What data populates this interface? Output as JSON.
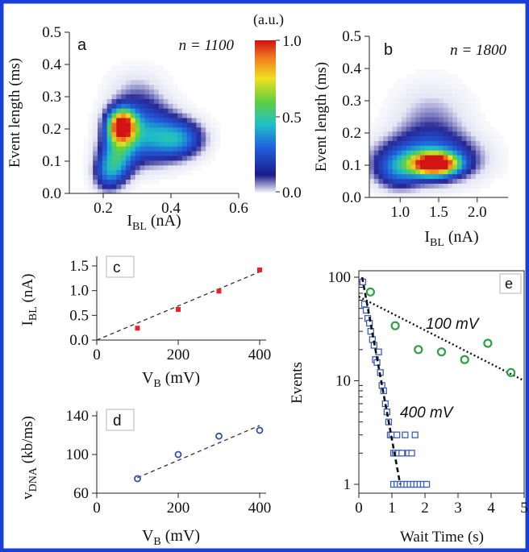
{
  "chart_data": [
    {
      "panel": "a",
      "type": "heatmap",
      "annotation": "n = 1100",
      "xlabel": "I_BL (nA)",
      "ylabel": "Event length (ms)",
      "xlim": [
        0.1,
        0.6
      ],
      "ylim": [
        0.0,
        0.5
      ],
      "xticks": [
        "0.2",
        "0.4",
        "0.6"
      ],
      "yticks": [
        "0.0",
        "0.1",
        "0.2",
        "0.3",
        "0.4",
        "0.5"
      ],
      "blobs": [
        {
          "x": 0.255,
          "y": 0.21,
          "sx": 0.028,
          "sy": 0.035,
          "a": 1.0
        },
        {
          "x": 0.33,
          "y": 0.18,
          "sx": 0.07,
          "sy": 0.06,
          "a": 0.38
        },
        {
          "x": 0.43,
          "y": 0.17,
          "sx": 0.05,
          "sy": 0.04,
          "a": 0.3
        },
        {
          "x": 0.24,
          "y": 0.11,
          "sx": 0.035,
          "sy": 0.05,
          "a": 0.38
        },
        {
          "x": 0.21,
          "y": 0.06,
          "sx": 0.03,
          "sy": 0.04,
          "a": 0.22
        },
        {
          "x": 0.3,
          "y": 0.3,
          "sx": 0.06,
          "sy": 0.06,
          "a": 0.12
        }
      ]
    },
    {
      "panel": "b",
      "type": "heatmap",
      "annotation": "n = 1800",
      "xlabel": "I_BL (nA)",
      "ylabel": "Event length (ms)",
      "xlim": [
        0.6,
        2.4
      ],
      "ylim": [
        0.0,
        0.5
      ],
      "xticks": [
        "1.0",
        "1.5",
        "2.0"
      ],
      "yticks": [
        "0.0",
        "0.1",
        "0.2",
        "0.3",
        "0.4",
        "0.5"
      ],
      "blobs": [
        {
          "x": 1.45,
          "y": 0.105,
          "sx": 0.2,
          "sy": 0.022,
          "a": 1.0
        },
        {
          "x": 1.35,
          "y": 0.12,
          "sx": 0.45,
          "sy": 0.05,
          "a": 0.35
        },
        {
          "x": 1.4,
          "y": 0.22,
          "sx": 0.35,
          "sy": 0.09,
          "a": 0.14
        },
        {
          "x": 0.95,
          "y": 0.08,
          "sx": 0.2,
          "sy": 0.04,
          "a": 0.2
        }
      ]
    },
    {
      "panel": "c",
      "type": "scatter",
      "xlabel": "V_B (mV)",
      "ylabel": "I_BL (nA)",
      "xlim": [
        0,
        400
      ],
      "ylim": [
        0.0,
        1.5
      ],
      "xticks": [
        "0",
        "200",
        "400"
      ],
      "yticks": [
        "0.0",
        "0.5",
        "1.0",
        "1.5"
      ],
      "x": [
        100,
        200,
        300,
        400
      ],
      "y": [
        0.24,
        0.62,
        0.99,
        1.42
      ],
      "fit": {
        "x": [
          0,
          400
        ],
        "y": [
          0.0,
          1.38
        ]
      }
    },
    {
      "panel": "d",
      "type": "scatter",
      "xlabel": "V_B (mV)",
      "ylabel": "v_DNA (kb/ms)",
      "xlim": [
        0,
        400
      ],
      "ylim": [
        60,
        140
      ],
      "xticks": [
        "0",
        "200",
        "400"
      ],
      "yticks": [
        "60",
        "100",
        "140"
      ],
      "x": [
        100,
        200,
        300,
        400
      ],
      "y": [
        75,
        100,
        119,
        125
      ],
      "fit": {
        "x": [
          100,
          400
        ],
        "y": [
          76,
          130
        ]
      }
    },
    {
      "panel": "e",
      "type": "scatter",
      "xlabel": "Wait Time (s)",
      "ylabel": "Events",
      "log_y": true,
      "xlim": [
        0,
        5
      ],
      "ylim": [
        1,
        100
      ],
      "xticks": [
        "0",
        "1",
        "2",
        "3",
        "4",
        "5"
      ],
      "yticks": [
        "1",
        "10",
        "100"
      ],
      "series": [
        {
          "name": "100 mV",
          "x": [
            0.35,
            1.1,
            1.8,
            2.5,
            3.2,
            3.9,
            4.6
          ],
          "y": [
            72,
            34,
            20,
            19,
            16,
            23,
            12
          ],
          "fit": {
            "x": [
              0.0,
              5.0
            ],
            "y": [
              65,
              10
            ]
          }
        },
        {
          "name": "400 mV",
          "x": [
            0.12,
            0.17,
            0.22,
            0.27,
            0.32,
            0.36,
            0.41,
            0.46,
            0.5,
            0.55,
            0.6,
            0.65,
            0.7,
            0.75,
            0.8,
            0.85,
            0.9,
            0.95,
            1.0,
            1.05,
            1.1,
            1.15,
            1.2,
            1.3,
            1.4,
            1.5,
            1.6,
            1.7,
            1.05,
            1.15,
            1.25,
            1.35,
            1.45,
            1.55,
            1.65,
            1.75,
            1.85,
            1.95,
            2.05
          ],
          "y": [
            90,
            55,
            48,
            40,
            36,
            30,
            25,
            22,
            16,
            15,
            19,
            12,
            9,
            8,
            6,
            5,
            4,
            3,
            3,
            2,
            2,
            3,
            2,
            2,
            3,
            2,
            2,
            3,
            1,
            1,
            1,
            1,
            1,
            1,
            1,
            1,
            1,
            1,
            1
          ],
          "fit": {
            "x": [
              0.1,
              1.25
            ],
            "y": [
              100,
              1
            ]
          }
        }
      ]
    }
  ],
  "colorbar": {
    "label": "(a.u.)",
    "ticks": [
      "1.0",
      "0.5",
      "0.0"
    ]
  },
  "colors": {
    "frame": "#1a3fd6",
    "marker_c": "#e8242a",
    "marker_d": "#2f4fb0",
    "marker_e_100mV": "#2ea043",
    "marker_e_400mV": "#3d5fb8"
  }
}
